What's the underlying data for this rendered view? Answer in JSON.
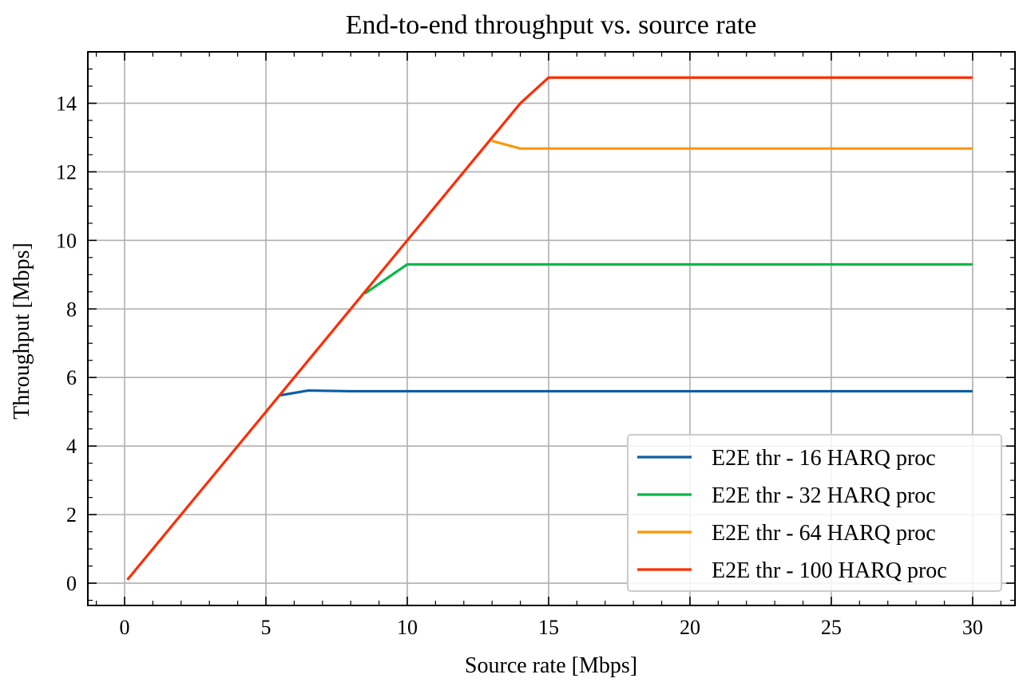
{
  "chart_data": {
    "type": "line",
    "title": "End-to-end throughput vs. source rate",
    "xlabel": "Source rate [Mbps]",
    "ylabel": "Throughput [Mbps]",
    "xlim": [
      -1.3,
      31.5
    ],
    "ylim": [
      -0.65,
      15.5
    ],
    "xticks": [
      0,
      5,
      10,
      15,
      20,
      25,
      30
    ],
    "yticks": [
      0,
      2,
      4,
      6,
      8,
      10,
      12,
      14
    ],
    "grid": true,
    "legend_position": "bottom-right",
    "series": [
      {
        "name": "E2E thr - 16 HARQ proc",
        "color": "#0c5da5",
        "x": [
          5.5,
          6.5,
          8,
          10,
          15,
          20,
          25,
          30
        ],
        "y": [
          5.48,
          5.62,
          5.6,
          5.6,
          5.6,
          5.6,
          5.6,
          5.6
        ]
      },
      {
        "name": "E2E thr - 32 HARQ proc",
        "color": "#00b945",
        "x": [
          8.5,
          10,
          15,
          20,
          25,
          30
        ],
        "y": [
          8.45,
          9.3,
          9.3,
          9.3,
          9.3,
          9.3
        ]
      },
      {
        "name": "E2E thr - 64 HARQ proc",
        "color": "#ff9500",
        "x": [
          13,
          14,
          15,
          20,
          25,
          30
        ],
        "y": [
          12.9,
          12.68,
          12.68,
          12.68,
          12.68,
          12.68
        ]
      },
      {
        "name": "E2E thr - 100 HARQ proc",
        "color": "#ff2c00",
        "x": [
          0.1,
          5,
          10,
          13,
          14,
          15,
          20,
          25,
          30
        ],
        "y": [
          0.1,
          5,
          10,
          13,
          14,
          14.75,
          14.75,
          14.75,
          14.75
        ]
      }
    ]
  }
}
